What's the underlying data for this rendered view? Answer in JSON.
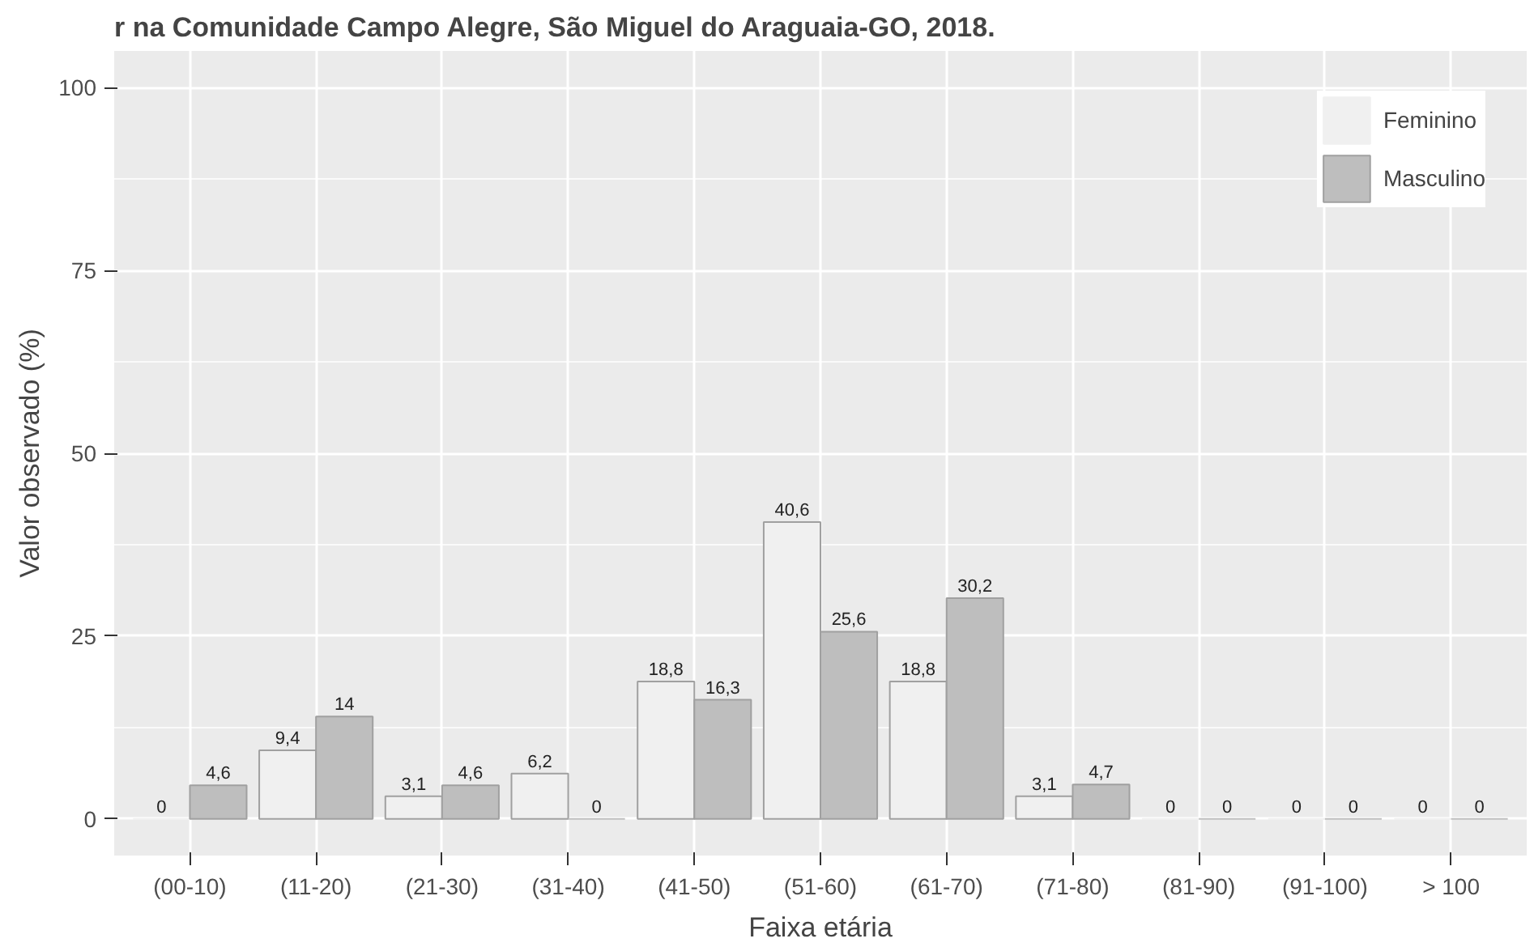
{
  "chart_data": {
    "type": "bar",
    "title": "r na Comunidade Campo Alegre, São Miguel do Araguaia-GO, 2018.",
    "xlabel": "Faixa etária",
    "ylabel": "Valor observado (%)",
    "categories": [
      "(00-10)",
      "(11-20)",
      "(21-30)",
      "(31-40)",
      "(41-50)",
      "(51-60)",
      "(61-70)",
      "(71-80)",
      "(81-90)",
      "(91-100)",
      "> 100"
    ],
    "series": [
      {
        "name": "Feminino",
        "color": "#f0f0f0",
        "values": [
          0,
          9.4,
          3.1,
          6.2,
          18.8,
          40.6,
          18.8,
          3.1,
          0,
          0,
          0
        ],
        "value_labels": [
          "0",
          "9,4",
          "3,1",
          "6,2",
          "18,8",
          "40,6",
          "18,8",
          "3,1",
          "0",
          "0",
          "0"
        ]
      },
      {
        "name": "Masculino",
        "color": "#bebebe",
        "values": [
          4.6,
          14,
          4.6,
          0,
          16.3,
          25.6,
          30.2,
          4.7,
          0,
          0,
          0
        ],
        "value_labels": [
          "4,6",
          "14",
          "4,6",
          "0",
          "16,3",
          "25,6",
          "30,2",
          "4,7",
          "0",
          "0",
          "0"
        ]
      }
    ],
    "ylim": [
      -5,
      105
    ],
    "yticks": [
      0,
      25,
      50,
      75,
      100
    ],
    "grid": true,
    "legend": "top right"
  }
}
